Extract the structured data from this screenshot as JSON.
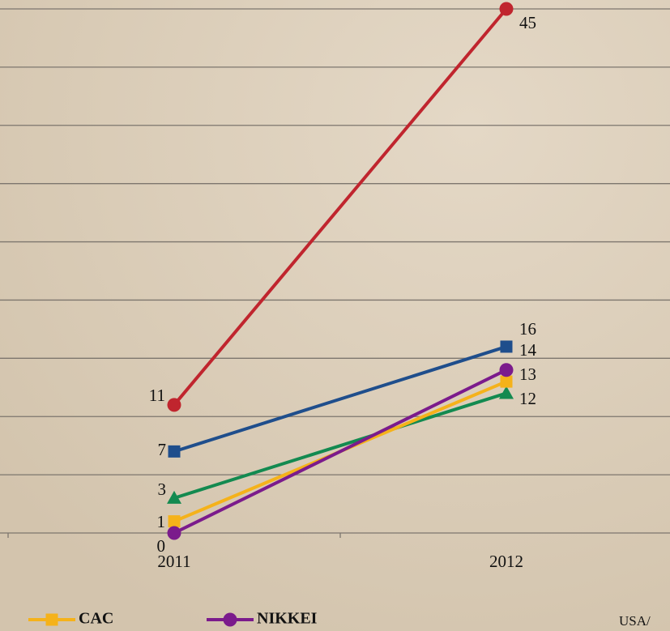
{
  "chart_data": {
    "type": "line",
    "categories": [
      "2011",
      "2012"
    ],
    "series": [
      {
        "color": "#c0252e",
        "marker": "circle",
        "values": [
          11,
          45
        ]
      },
      {
        "color": "#1f4e8c",
        "marker": "square",
        "values": [
          7,
          16
        ]
      },
      {
        "color": "#138a50",
        "marker": "triangle",
        "values": [
          3,
          12
        ]
      },
      {
        "name": "CAC",
        "color": "#f5b21a",
        "marker": "square",
        "values": [
          1,
          13
        ]
      },
      {
        "name": "NIKKEI",
        "color": "#7b1b8c",
        "marker": "circle",
        "values": [
          0,
          14
        ]
      }
    ],
    "ylim": [
      0,
      45
    ],
    "yticks": [
      0,
      5,
      10,
      15,
      20,
      25,
      30,
      35,
      40,
      45
    ],
    "grid": true,
    "footer": "USA/"
  }
}
